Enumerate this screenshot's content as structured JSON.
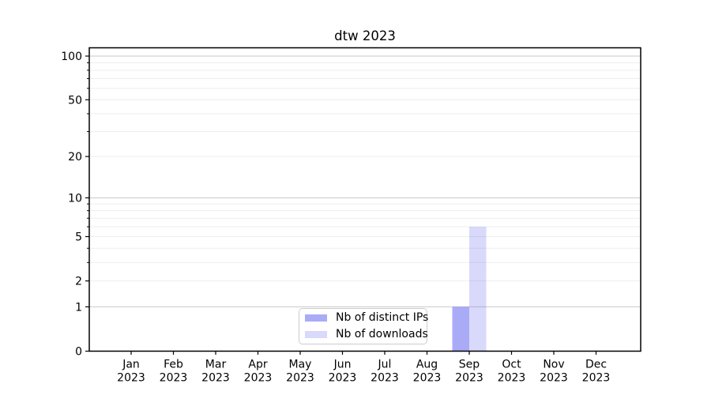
{
  "chart_data": {
    "type": "bar",
    "title": "dtw 2023",
    "x_year": "2023",
    "categories": [
      "Jan",
      "Feb",
      "Mar",
      "Apr",
      "May",
      "Jun",
      "Jul",
      "Aug",
      "Sep",
      "Oct",
      "Nov",
      "Dec"
    ],
    "series": [
      {
        "name": "Nb of distinct IPs",
        "color": "rgba(100,102,240,0.55)",
        "values": [
          0,
          0,
          0,
          0,
          0,
          0,
          0,
          0,
          1,
          0,
          0,
          0
        ]
      },
      {
        "name": "Nb of downloads",
        "color": "rgba(100,102,240,0.25)",
        "values": [
          0,
          0,
          0,
          0,
          0,
          0,
          0,
          0,
          6,
          0,
          0,
          0
        ]
      }
    ],
    "y_scale": "log10(1+v)",
    "ylim": [
      0,
      114
    ],
    "y_ticks": [
      0,
      1,
      2,
      5,
      10,
      20,
      50,
      100
    ],
    "y_minor_ticks": [
      3,
      4,
      6,
      7,
      8,
      9,
      30,
      40,
      60,
      70,
      80,
      90
    ],
    "y_major_gridlines": [
      1,
      10,
      100
    ],
    "y_minor_gridlines": [
      2,
      3,
      4,
      5,
      6,
      7,
      8,
      9,
      20,
      30,
      40,
      50,
      60,
      70,
      80,
      90
    ],
    "grid": true,
    "legend_position": "inside lower-center",
    "colors": {
      "background": "#ffffff",
      "grid_major": "#c9c9c9",
      "grid_minor": "#ededed",
      "spine": "#000000",
      "tick": "#000000",
      "text": "#000000",
      "legend_border": "#cccccc"
    }
  }
}
